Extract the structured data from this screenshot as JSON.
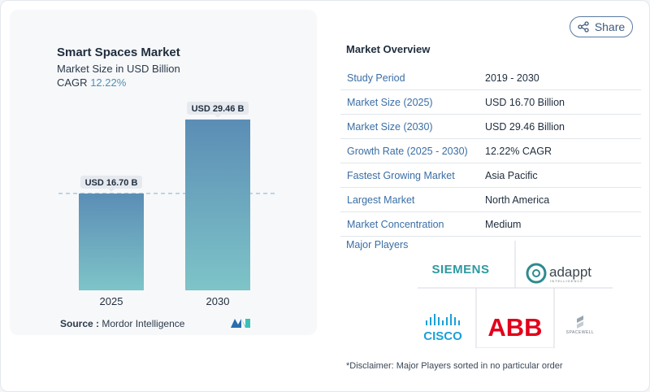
{
  "chart_data": {
    "type": "bar",
    "title": "Smart Spaces Market",
    "subtitle": "Market Size in USD Billion",
    "cagr_label": "CAGR",
    "cagr_value": "12.22%",
    "categories": [
      "2025",
      "2030"
    ],
    "values": [
      16.7,
      29.46
    ],
    "data_labels": [
      "USD 16.70 B",
      "USD 29.46 B"
    ],
    "ylim": [
      0,
      34.5
    ],
    "reference_line": 16.7,
    "colors": {
      "bar_top": "#5b8db5",
      "bar_bottom": "#7ec4c8",
      "label_bg": "#e6eaef",
      "dashed": "#7fb3cc"
    },
    "xlabel": "",
    "ylabel": ""
  },
  "source": {
    "label": "Source :",
    "text": "Mordor Intelligence"
  },
  "share": {
    "label": "Share",
    "icon": "share-icon"
  },
  "overview": {
    "title": "Market Overview",
    "rows": [
      {
        "label": "Study Period",
        "value": "2019 - 2030"
      },
      {
        "label": "Market Size (2025)",
        "value": "USD 16.70 Billion"
      },
      {
        "label": "Market Size (2030)",
        "value": "USD 29.46 Billion"
      },
      {
        "label": "Growth Rate (2025 - 2030)",
        "value": "12.22% CAGR"
      },
      {
        "label": "Fastest Growing Market",
        "value": "Asia Pacific"
      },
      {
        "label": "Largest Market",
        "value": "North America"
      },
      {
        "label": "Market Concentration",
        "value": "Medium"
      }
    ]
  },
  "players": {
    "label": "Major Players",
    "logos": {
      "siemens": "SIEMENS",
      "adappt": "adappt",
      "adappt_sub": "INTELLIGENCE",
      "cisco": "CISCO",
      "abb": "ABB",
      "spacewell": "SPACEWELL"
    }
  },
  "disclaimer": "*Disclaimer: Major Players sorted in no particular order"
}
